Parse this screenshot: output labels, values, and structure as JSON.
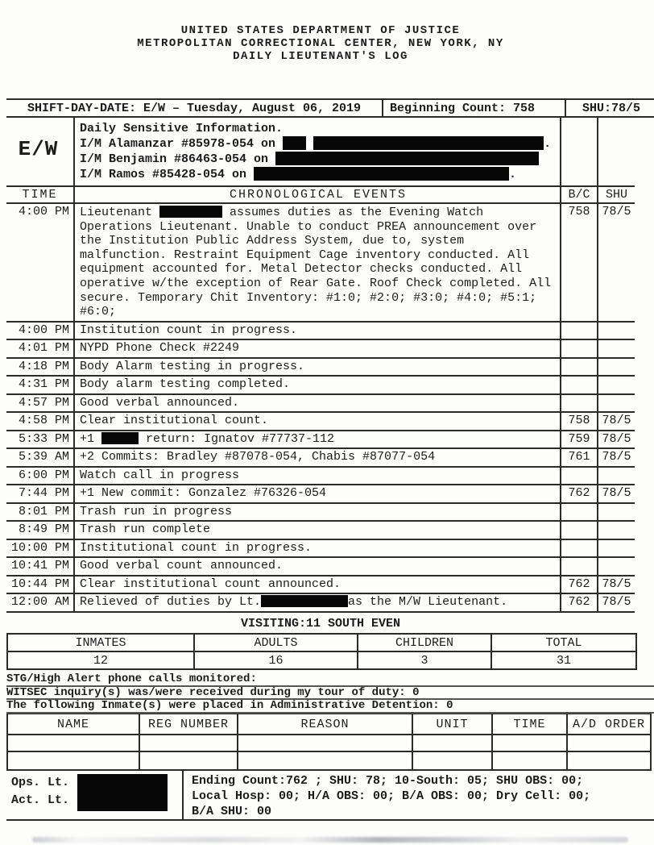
{
  "colors": {
    "paper": "#fdfdfc",
    "ink": "#1c1c1c",
    "redaction": "#070707"
  },
  "header_lines": [
    "UNITED STATES DEPARTMENT OF JUSTICE",
    "METROPOLITAN CORRECTIONAL CENTER, NEW YORK, NY",
    "DAILY LIEUTENANT'S LOG"
  ],
  "shift_row": {
    "shift_label": "SHIFT-DAY-DATE: E/W – Tuesday, August 06, 2019",
    "beginning_count": "Beginning Count: 758",
    "shu": "SHU:78/5"
  },
  "sensitive": {
    "shift_code": "E/W",
    "lines": [
      [
        {
          "text": "Daily Sensitive Information."
        }
      ],
      [
        {
          "text": "I/M Alamanzar #85978-054 on "
        },
        {
          "redact": 29
        },
        {
          "text": " "
        },
        {
          "redact": 286
        },
        {
          "text": "."
        }
      ],
      [
        {
          "text": "I/M Benjamin #86463-054 on "
        },
        {
          "redact": 327
        }
      ],
      [
        {
          "text": "I/M Ramos #85428-054 on "
        },
        {
          "redact": 317
        },
        {
          "text": "."
        }
      ]
    ]
  },
  "log": {
    "columns": {
      "time": "TIME",
      "events": "CHRONOLOGICAL EVENTS",
      "bc": "B/C",
      "shu": "SHU"
    },
    "entries": [
      {
        "time": "4:00 PM",
        "tall": true,
        "bc": "758",
        "shu": "78/5",
        "segments": [
          {
            "text": "Lieutenant "
          },
          {
            "redact": 78
          },
          {
            "text": " assumes duties as the Evening Watch Operations Lieutenant. Unable to conduct PREA announcement over the Institution Public Address System, due to, system malfunction. Restraint Equipment Cage inventory conducted. All equipment accounted for. Metal Detector checks conducted.  All operative w/the exception of Rear Gate.  Roof Check completed. All secure. Temporary Chit Inventory: #1:0; #2:0; #3:0; #4:0; #5:1; #6:0;"
          }
        ]
      },
      {
        "time": "4:00 PM",
        "segments": [
          {
            "text": "Institution count in progress."
          }
        ]
      },
      {
        "time": "4:01 PM",
        "segments": [
          {
            "text": "NYPD Phone Check #2249"
          }
        ]
      },
      {
        "time": "4:18 PM",
        "segments": [
          {
            "text": "Body Alarm testing in progress."
          }
        ]
      },
      {
        "time": "4:31 PM",
        "segments": [
          {
            "text": "Body alarm testing completed."
          }
        ]
      },
      {
        "time": "4:57 PM",
        "segments": [
          {
            "text": "Good verbal announced."
          }
        ]
      },
      {
        "time": "4:58 PM",
        "bc": "758",
        "shu": "78/5",
        "segments": [
          {
            "text": "Clear institutional count."
          }
        ]
      },
      {
        "time": "5:33 PM",
        "bc": "759",
        "shu": "78/5",
        "segments": [
          {
            "text": "+1 "
          },
          {
            "redact": 46
          },
          {
            "text": " return: Ignatov #77737-112"
          }
        ]
      },
      {
        "time": "5:39 AM",
        "bc": "761",
        "shu": "78/5",
        "segments": [
          {
            "text": "+2 Commits: Bradley #87078-054, Chabis #87077-054"
          }
        ]
      },
      {
        "time": "6:00 PM",
        "segments": [
          {
            "text": "Watch call in progress"
          }
        ]
      },
      {
        "time": "7:44 PM",
        "bc": "762",
        "shu": "78/5",
        "segments": [
          {
            "text": "+1 New commit: Gonzalez #76326-054"
          }
        ]
      },
      {
        "time": "8:01 PM",
        "segments": [
          {
            "text": "Trash run in progress"
          }
        ]
      },
      {
        "time": "8:49 PM",
        "segments": [
          {
            "text": "Trash run complete"
          }
        ]
      },
      {
        "time": "10:00 PM",
        "segments": [
          {
            "text": "Institutional count in progress."
          }
        ]
      },
      {
        "time": "10:41 PM",
        "segments": [
          {
            "text": "Good verbal count announced."
          }
        ]
      },
      {
        "time": "10:44 PM",
        "bc": "762",
        "shu": "78/5",
        "segments": [
          {
            "text": "Clear institutional count announced."
          }
        ]
      },
      {
        "time": "12:00 AM",
        "bc": "762",
        "shu": "78/5",
        "segments": [
          {
            "text": "Relieved of duties by Lt."
          },
          {
            "redact": 108
          },
          {
            "text": "as the M/W Lieutenant."
          }
        ]
      }
    ]
  },
  "visiting": {
    "title": "VISITING:11 SOUTH EVEN",
    "headers": [
      "INMATES",
      "ADULTS",
      "CHILDREN",
      "TOTAL"
    ],
    "values": [
      "12",
      "16",
      "3",
      "31"
    ]
  },
  "notes": [
    "STG/High Alert phone calls monitored:",
    "WITSEC inquiry(s) was/were received during my tour of duty: 0",
    "The following Inmate(s) were placed in Administrative Detention: 0"
  ],
  "detention_table": {
    "headers": [
      "NAME",
      "REG NUMBER",
      "REASON",
      "UNIT",
      "TIME",
      "A/D ORDER"
    ],
    "rows": [
      [
        "",
        "",
        "",
        "",
        "",
        ""
      ],
      [
        "",
        "",
        "",
        "",
        "",
        ""
      ]
    ]
  },
  "footer": {
    "ops_label": "Ops. Lt.",
    "act_label": "Act. Lt.",
    "summary_lines": [
      "Ending Count:762 ; SHU: 78; 10-South: 05; SHU OBS: 00;",
      "Local Hosp: 00; H/A OBS: 00; B/A OBS: 00; Dry Cell: 00;",
      "B/A SHU: 00"
    ]
  }
}
